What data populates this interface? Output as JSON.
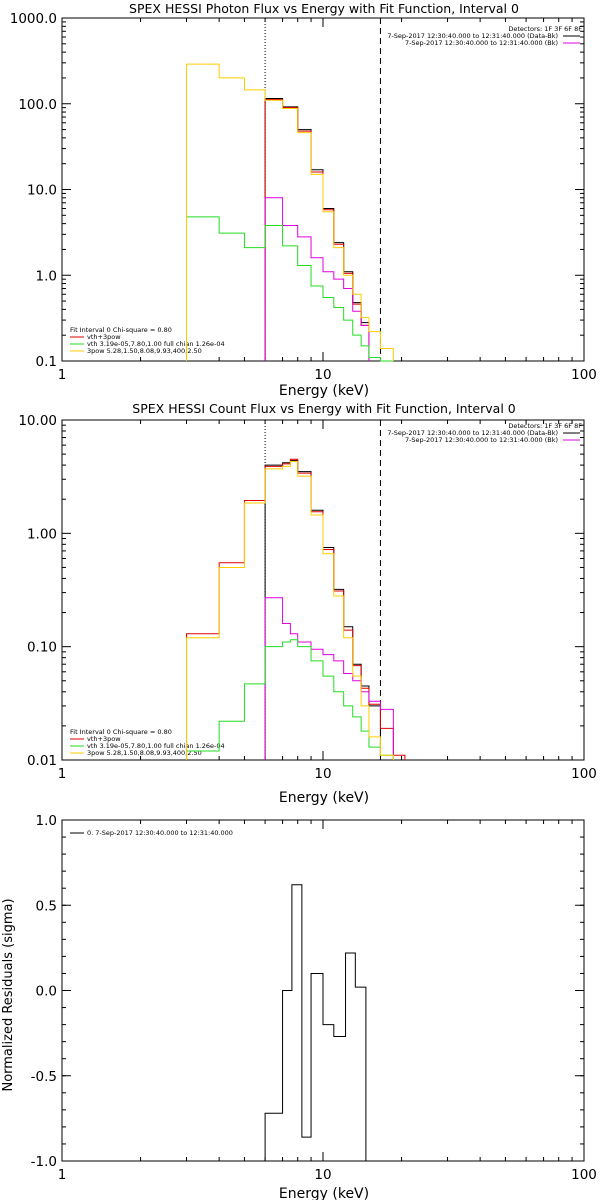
{
  "colors": {
    "black": "#000000",
    "red": "#e00000",
    "magenta": "#e000e0",
    "green": "#22dd22",
    "yellow": "#ffcc00"
  },
  "chart_data": [
    {
      "type": "line",
      "step": true,
      "title": "SPEX HESSI Photon Flux vs Energy with Fit Function, Interval 0",
      "xlabel": "Energy (keV)",
      "ylabel": "",
      "xscale": "log",
      "yscale": "log",
      "xlim": [
        1,
        100
      ],
      "ylim": [
        0.1,
        1000
      ],
      "xticks": [
        1,
        10,
        100
      ],
      "xtick_labels": [
        "1",
        "10",
        "100"
      ],
      "yticks": [
        0.1,
        1,
        10,
        100,
        1000
      ],
      "ytick_labels": [
        "0.1",
        "1.0",
        "10.0",
        "100.0",
        "1000.0"
      ],
      "vlines": [
        {
          "x": 6.0,
          "style": "dotted"
        },
        {
          "x": 16.6,
          "style": "dashed"
        }
      ],
      "legend_right_title": "Detectors: 1F 3F 6F 8F",
      "legend_right": [
        {
          "label": "7-Sep-2017 12:30:40.000 to 12:31:40.000 (Data-Bk)",
          "color": "#000000"
        },
        {
          "label": "7-Sep-2017 12:30:40.000 to 12:31:40.000 (Bk)",
          "color": "#e000e0"
        }
      ],
      "legend_left": [
        {
          "label": "Fit Interval 0   Chi-square = 0.80",
          "color": ""
        },
        {
          "label": "vth+3pow",
          "color": "#e00000"
        },
        {
          "label": "vth 3.19e-05,7.80,1.00  full chian 1.26e-04",
          "color": "#22dd22"
        },
        {
          "label": "3pow 5.28,1.50,8.08,9.93,400,2.50",
          "color": "#ffcc00"
        }
      ],
      "edges": [
        3.0,
        4.0,
        5.0,
        6.0,
        7.0,
        8.0,
        9.0,
        10.0,
        11.0,
        12.0,
        13.0,
        14.0,
        15.0,
        16.6,
        18.6,
        20.6
      ],
      "series": [
        {
          "name": "Data-Bk",
          "color": "#000000",
          "values": [
            null,
            null,
            null,
            115,
            92,
            50,
            17,
            6,
            2.4,
            1.1,
            0.48,
            0.28,
            null,
            null,
            null
          ]
        },
        {
          "name": "vth+3pow",
          "color": "#e00000",
          "values": [
            null,
            null,
            null,
            112,
            90,
            48,
            16,
            5.8,
            2.3,
            1.05,
            0.46,
            0.26,
            null,
            null,
            null
          ]
        },
        {
          "name": "Bk",
          "color": "#e000e0",
          "values": [
            null,
            null,
            null,
            8.0,
            3.8,
            2.8,
            1.6,
            1.1,
            0.9,
            0.7,
            0.38,
            0.26,
            null,
            null,
            null
          ]
        },
        {
          "name": "vth",
          "color": "#22dd22",
          "values": [
            4.8,
            3.1,
            2.1,
            3.8,
            2.2,
            1.3,
            0.75,
            0.55,
            0.42,
            0.3,
            0.2,
            0.15,
            0.11,
            0.1,
            null
          ]
        },
        {
          "name": "3pow",
          "color": "#ffcc00",
          "values": [
            290,
            200,
            145,
            110,
            88,
            46,
            15,
            5.5,
            2.1,
            1.0,
            0.6,
            0.32,
            0.22,
            0.14,
            null
          ]
        }
      ]
    },
    {
      "type": "line",
      "step": true,
      "title": "SPEX HESSI Count Flux vs Energy with Fit Function, Interval 0",
      "xlabel": "Energy (keV)",
      "ylabel": "",
      "xscale": "log",
      "yscale": "log",
      "xlim": [
        1,
        100
      ],
      "ylim": [
        0.01,
        10
      ],
      "xticks": [
        1,
        10,
        100
      ],
      "xtick_labels": [
        "1",
        "10",
        "100"
      ],
      "yticks": [
        0.01,
        0.1,
        1,
        10
      ],
      "ytick_labels": [
        "0.01",
        "0.10",
        "1.00",
        "10.00"
      ],
      "vlines": [
        {
          "x": 6.0,
          "style": "dotted"
        },
        {
          "x": 16.6,
          "style": "dashed"
        }
      ],
      "legend_right_title": "Detectors: 1F 3F 6F 8F",
      "legend_right": [
        {
          "label": "7-Sep-2017 12:30:40.000 to 12:31:40.000 (Data-Bk)",
          "color": "#000000"
        },
        {
          "label": "7-Sep-2017 12:30:40.000 to 12:31:40.000 (Bk)",
          "color": "#e000e0"
        }
      ],
      "legend_left": [
        {
          "label": "Fit Interval 0   Chi-square = 0.80",
          "color": ""
        },
        {
          "label": "vth+3pow",
          "color": "#e00000"
        },
        {
          "label": "vth 3.19e-05,7.80,1.00  full chian 1.26e-04",
          "color": "#22dd22"
        },
        {
          "label": "3pow 5.28,1.50,8.08,9.93,400,2.50",
          "color": "#ffcc00"
        }
      ],
      "edges": [
        3.0,
        4.0,
        5.0,
        6.0,
        7.0,
        7.5,
        8.0,
        9.0,
        10.0,
        11.0,
        12.0,
        13.0,
        14.0,
        15.0,
        16.6,
        18.6,
        20.6
      ],
      "series": [
        {
          "name": "Data-Bk",
          "color": "#000000",
          "values": [
            null,
            null,
            null,
            4.0,
            4.2,
            4.4,
            3.5,
            1.6,
            0.75,
            0.32,
            0.15,
            0.07,
            0.045,
            0.03,
            null,
            null
          ]
        },
        {
          "name": "vth+3pow",
          "color": "#e00000",
          "values": [
            0.13,
            0.55,
            1.95,
            3.9,
            4.1,
            4.5,
            3.4,
            1.55,
            0.72,
            0.31,
            0.14,
            0.068,
            0.043,
            0.031,
            0.019,
            0.011
          ]
        },
        {
          "name": "Bk",
          "color": "#e000e0",
          "values": [
            null,
            null,
            null,
            0.27,
            0.16,
            0.13,
            0.11,
            0.095,
            0.085,
            0.075,
            0.058,
            0.05,
            0.04,
            0.033,
            0.028,
            null
          ]
        },
        {
          "name": "vth",
          "color": "#22dd22",
          "values": [
            0.012,
            0.022,
            0.047,
            0.1,
            0.11,
            0.115,
            0.1,
            0.075,
            0.055,
            0.04,
            0.03,
            0.024,
            0.018,
            0.013,
            0.011,
            null
          ]
        },
        {
          "name": "3pow",
          "color": "#ffcc00",
          "values": [
            0.12,
            0.5,
            1.85,
            3.7,
            3.9,
            4.3,
            3.2,
            1.45,
            0.66,
            0.28,
            0.12,
            0.055,
            0.03,
            0.016,
            0.011,
            null
          ]
        }
      ]
    },
    {
      "type": "line",
      "step": true,
      "title": "",
      "xlabel": "Energy (keV)",
      "ylabel": "Normalized Residuals (sigma)",
      "xscale": "log",
      "yscale": "linear",
      "xlim": [
        1,
        100
      ],
      "ylim": [
        -1.0,
        1.0
      ],
      "xticks": [
        1,
        10,
        100
      ],
      "xtick_labels": [
        "1",
        "10",
        "100"
      ],
      "yticks": [
        -1.0,
        -0.5,
        0.0,
        0.5,
        1.0
      ],
      "ytick_labels": [
        "-1.0",
        "-0.5",
        "0.0",
        "0.5",
        "1.0"
      ],
      "legend_left": [
        {
          "label": "0.  7-Sep-2017 12:30:40.000 to 12:31:40.000",
          "color": "#000000"
        }
      ],
      "edges": [
        6.0,
        7.0,
        7.6,
        8.3,
        9.0,
        10.0,
        11.0,
        12.2,
        13.3,
        14.6,
        16.2
      ],
      "series": [
        {
          "name": "",
          "color": "#000000",
          "values": [
            -0.72,
            0.0,
            0.62,
            -0.86,
            0.1,
            -0.2,
            -0.27,
            0.22,
            0.02,
            null
          ]
        }
      ]
    }
  ]
}
